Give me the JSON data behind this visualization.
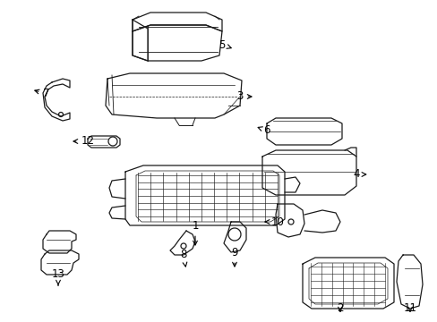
{
  "background_color": "#ffffff",
  "line_color": "#1a1a1a",
  "fig_width": 4.89,
  "fig_height": 3.6,
  "dpi": 100,
  "label_fontsize": 8.5,
  "lw": 0.9
}
